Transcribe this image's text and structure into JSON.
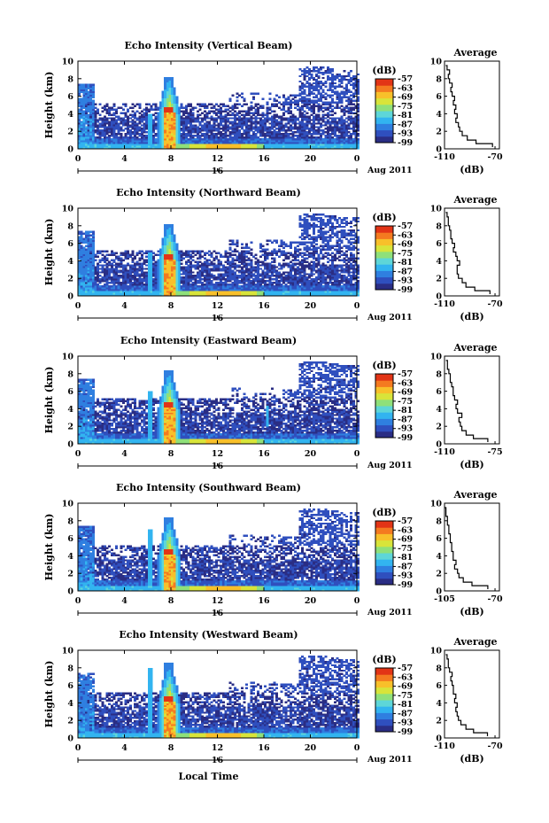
{
  "figure": {
    "xlabel": "Local Time",
    "date_label": "Aug 2011",
    "colorbar_unit": "(dB)",
    "avg_title": "Average",
    "avg_xlabel": "(dB)"
  },
  "colors": {
    "colormap": [
      "#2a2d84",
      "#2f4fbe",
      "#2f7fe0",
      "#32b4f0",
      "#5ed6d8",
      "#8fe07a",
      "#d8e43a",
      "#f8c02a",
      "#f47a20",
      "#e23416"
    ],
    "axis": "#000000",
    "profile_line": "#000000"
  },
  "chart_data": [
    {
      "type": "heatmap",
      "title": "Echo Intensity (Vertical Beam)",
      "ylabel": "Height (km)",
      "xlim": [
        0,
        24
      ],
      "ylim": [
        0,
        10
      ],
      "xticks": [
        "0",
        "4",
        "8",
        "12",
        "16",
        "20",
        "0"
      ],
      "yticks": [
        "0",
        "2",
        "4",
        "6",
        "8",
        "10"
      ],
      "date_tick": "16",
      "colorbar_ticks": [
        "-57",
        "-63",
        "-69",
        "-75",
        "-81",
        "-87",
        "-93",
        "-99"
      ],
      "colorbar_range": [
        -99,
        -57
      ],
      "avg_xticks": [
        "-110",
        "-70"
      ],
      "avg_xlim": [
        -110,
        -70
      ],
      "profile": {
        "height": [
          0.2,
          0.6,
          1,
          1.5,
          2,
          2.5,
          3,
          3.5,
          4,
          4.5,
          5,
          5.5,
          6,
          6.5,
          7,
          7.5,
          8,
          8.5,
          9,
          9.5
        ],
        "db": [
          -72,
          -85,
          -92,
          -96,
          -98,
          -99,
          -101,
          -100,
          -102,
          -101,
          -103,
          -102,
          -104,
          -105,
          -104,
          -106,
          -107,
          -106,
          -108,
          -109
        ]
      }
    },
    {
      "type": "heatmap",
      "title": "Echo Intensity (Northward Beam)",
      "ylabel": "Height (km)",
      "xlim": [
        0,
        24
      ],
      "ylim": [
        0,
        10
      ],
      "xticks": [
        "0",
        "4",
        "8",
        "12",
        "16",
        "20",
        "0"
      ],
      "yticks": [
        "0",
        "2",
        "4",
        "6",
        "8",
        "10"
      ],
      "date_tick": "16",
      "colorbar_ticks": [
        "-57",
        "-63",
        "-69",
        "-75",
        "-81",
        "-87",
        "-93",
        "-99"
      ],
      "colorbar_range": [
        -99,
        -57
      ],
      "avg_xticks": [
        "-110",
        "-70"
      ],
      "avg_xlim": [
        -110,
        -70
      ],
      "profile": {
        "height": [
          0.2,
          0.6,
          1,
          1.5,
          2,
          2.5,
          3,
          3.5,
          4,
          4.5,
          5,
          5.5,
          6,
          6.5,
          7,
          7.5,
          8,
          8.5,
          9,
          9.5
        ],
        "db": [
          -74,
          -86,
          -93,
          -96,
          -99,
          -100,
          -100,
          -98,
          -100,
          -101,
          -103,
          -102,
          -104,
          -105,
          -105,
          -106,
          -107,
          -107,
          -108,
          -109
        ]
      }
    },
    {
      "type": "heatmap",
      "title": "Echo Intensity (Eastward Beam)",
      "ylabel": "Height (km)",
      "xlim": [
        0,
        24
      ],
      "ylim": [
        0,
        10
      ],
      "xticks": [
        "0",
        "4",
        "8",
        "12",
        "16",
        "20",
        "0"
      ],
      "yticks": [
        "0",
        "2",
        "4",
        "6",
        "8",
        "10"
      ],
      "date_tick": "16",
      "colorbar_ticks": [
        "-57",
        "-63",
        "-69",
        "-75",
        "-81",
        "-87",
        "-93",
        "-99"
      ],
      "colorbar_range": [
        -99,
        -57
      ],
      "avg_xticks": [
        "-110",
        "-75"
      ],
      "avg_xlim": [
        -110,
        -75
      ],
      "profile": {
        "height": [
          0.2,
          0.6,
          1,
          1.5,
          2,
          2.5,
          3,
          3.5,
          4,
          4.5,
          5,
          5.5,
          6,
          6.5,
          7,
          7.5,
          8,
          8.5,
          9,
          9.5
        ],
        "db": [
          -80,
          -90,
          -95,
          -98,
          -99,
          -100,
          -98,
          -101,
          -102,
          -101,
          -103,
          -104,
          -104,
          -105,
          -106,
          -106,
          -107,
          -108,
          -108,
          -109
        ]
      }
    },
    {
      "type": "heatmap",
      "title": "Echo Intensity (Southward Beam)",
      "ylabel": "Height (km)",
      "xlim": [
        0,
        24
      ],
      "ylim": [
        0,
        10
      ],
      "xticks": [
        "0",
        "4",
        "8",
        "12",
        "16",
        "20",
        "0"
      ],
      "yticks": [
        "0",
        "2",
        "4",
        "6",
        "8",
        "10"
      ],
      "date_tick": "16",
      "colorbar_ticks": [
        "-57",
        "-63",
        "-69",
        "-75",
        "-81",
        "-87",
        "-93",
        "-99"
      ],
      "colorbar_range": [
        -99,
        -57
      ],
      "avg_xticks": [
        "-105",
        "-70"
      ],
      "avg_xlim": [
        -105,
        -70
      ],
      "profile": {
        "height": [
          0.2,
          0.6,
          1,
          1.5,
          2,
          2.5,
          3,
          3.5,
          4,
          4.5,
          5,
          5.5,
          6,
          6.5,
          7,
          7.5,
          8,
          8.5,
          9,
          9.5
        ],
        "db": [
          -75,
          -86,
          -92,
          -95,
          -96,
          -98,
          -97,
          -99,
          -99,
          -100,
          -100,
          -101,
          -101,
          -102,
          -102,
          -103,
          -103,
          -104,
          -104,
          -105
        ]
      }
    },
    {
      "type": "heatmap",
      "title": "Echo Intensity (Westward Beam)",
      "ylabel": "Height (km)",
      "xlim": [
        0,
        24
      ],
      "ylim": [
        0,
        10
      ],
      "xticks": [
        "0",
        "4",
        "8",
        "12",
        "16",
        "20",
        "0"
      ],
      "yticks": [
        "0",
        "2",
        "4",
        "6",
        "8",
        "10"
      ],
      "date_tick": "16",
      "colorbar_ticks": [
        "-57",
        "-63",
        "-69",
        "-75",
        "-81",
        "-87",
        "-93",
        "-99"
      ],
      "colorbar_range": [
        -99,
        -57
      ],
      "avg_xticks": [
        "-110",
        "-70"
      ],
      "avg_xlim": [
        -110,
        -70
      ],
      "profile": {
        "height": [
          0.2,
          0.6,
          1,
          1.5,
          2,
          2.5,
          3,
          3.5,
          4,
          4.5,
          5,
          5.5,
          6,
          6.5,
          7,
          7.5,
          8,
          8.5,
          9,
          9.5
        ],
        "db": [
          -76,
          -87,
          -93,
          -97,
          -99,
          -100,
          -101,
          -100,
          -102,
          -101,
          -103,
          -103,
          -104,
          -105,
          -104,
          -106,
          -107,
          -107,
          -108,
          -109
        ]
      }
    }
  ]
}
